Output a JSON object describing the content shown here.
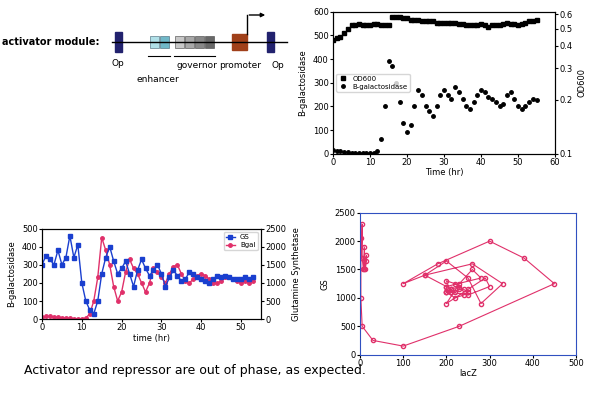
{
  "diagram": {
    "title": "activator module:",
    "elements": [
      "Op",
      "enhancer",
      "governor",
      "promoter",
      "Op"
    ]
  },
  "chart_data": [
    {
      "type": "scatter",
      "xlabel": "Time (hr)",
      "ylabel": "B-galactosidase",
      "y2label": "OD600",
      "x": [
        0,
        1,
        2,
        3,
        4,
        5,
        6,
        7,
        8,
        9,
        10,
        11,
        12,
        13,
        14,
        15,
        16,
        17,
        18,
        19,
        20,
        21,
        22,
        23,
        24,
        25,
        26,
        27,
        28,
        29,
        30,
        31,
        32,
        33,
        34,
        35,
        36,
        37,
        38,
        39,
        40,
        41,
        42,
        43,
        44,
        45,
        46,
        47,
        48,
        49,
        50,
        51,
        52,
        53,
        54,
        55
      ],
      "xlim": [
        0,
        60
      ],
      "xticks": [
        0,
        10,
        20,
        30,
        40,
        50,
        60
      ],
      "ylim": [
        0,
        600
      ],
      "yticks": [
        0,
        100,
        200,
        300,
        400,
        500,
        600
      ],
      "y2lim": [
        0.1,
        0.62
      ],
      "y2ticks": [
        0.1,
        0.2,
        0.3,
        0.4,
        0.5,
        0.6
      ],
      "log": "y2",
      "legend": "center left",
      "series": [
        {
          "name": "OD600",
          "color": "#000000",
          "marker": "square",
          "line_style": "none",
          "axis": "y2",
          "values": [
            0.43,
            0.44,
            0.45,
            0.47,
            0.5,
            0.52,
            0.52,
            0.53,
            0.52,
            0.52,
            0.52,
            0.53,
            0.53,
            0.52,
            0.52,
            0.52,
            0.58,
            0.58,
            0.58,
            0.57,
            0.57,
            0.56,
            0.56,
            0.56,
            0.55,
            0.55,
            0.55,
            0.55,
            0.54,
            0.54,
            0.54,
            0.54,
            0.54,
            0.54,
            0.53,
            0.53,
            0.52,
            0.52,
            0.52,
            0.52,
            0.53,
            0.52,
            0.51,
            0.52,
            0.52,
            0.52,
            0.53,
            0.54,
            0.53,
            0.53,
            0.52,
            0.53,
            0.54,
            0.55,
            0.55,
            0.56
          ]
        },
        {
          "name": "B-galactosidase",
          "color": "#000000",
          "marker": "circle",
          "line_style": "none",
          "values": [
            15,
            12,
            10,
            8,
            6,
            4,
            3,
            2,
            2,
            1,
            1,
            2,
            10,
            60,
            200,
            390,
            370,
            300,
            220,
            130,
            90,
            120,
            200,
            270,
            250,
            200,
            180,
            160,
            200,
            250,
            270,
            250,
            230,
            280,
            260,
            230,
            200,
            190,
            220,
            250,
            270,
            260,
            240,
            230,
            220,
            200,
            210,
            250,
            260,
            230,
            200,
            190,
            200,
            220,
            230,
            225
          ]
        }
      ]
    },
    {
      "type": "line",
      "xlabel": "time (hr)",
      "ylabel": "B-galactosidase",
      "y2label": "Glutamine Synthetase",
      "x": [
        0,
        1,
        2,
        3,
        4,
        5,
        6,
        7,
        8,
        9,
        10,
        11,
        12,
        13,
        14,
        15,
        16,
        17,
        18,
        19,
        20,
        21,
        22,
        23,
        24,
        25,
        26,
        27,
        28,
        29,
        30,
        31,
        32,
        33,
        34,
        35,
        36,
        37,
        38,
        39,
        40,
        41,
        42,
        43,
        44,
        45,
        46,
        47,
        48,
        49,
        50,
        51,
        52,
        53
      ],
      "xlim": [
        0,
        55
      ],
      "xticks": [
        0,
        10,
        20,
        30,
        40,
        50
      ],
      "ylim": [
        0,
        500
      ],
      "yticks": [
        0,
        100,
        200,
        300,
        400,
        500
      ],
      "y2lim": [
        0,
        2500
      ],
      "y2ticks": [
        0,
        500,
        1000,
        1500,
        2000,
        2500
      ],
      "legend": "upper right",
      "series": [
        {
          "name": "GS",
          "color": "#1a3fcf",
          "marker": "square",
          "line_style": "solid",
          "axis": "y2",
          "values": [
            1500,
            1750,
            1650,
            1500,
            1900,
            1500,
            1700,
            2300,
            1700,
            2050,
            1000,
            500,
            250,
            150,
            500,
            1250,
            1700,
            2000,
            1600,
            1250,
            1400,
            1600,
            1250,
            900,
            1350,
            1650,
            1400,
            1200,
            1350,
            1500,
            1250,
            900,
            1150,
            1350,
            1200,
            1050,
            1100,
            1300,
            1250,
            1150,
            1100,
            1050,
            1000,
            1100,
            1200,
            1150,
            1200,
            1150,
            1100,
            1100,
            1100,
            1150,
            1100,
            1150
          ]
        },
        {
          "name": "Bgal",
          "color": "#e0306a",
          "marker": "circle",
          "line_style": "solid",
          "values": [
            10,
            15,
            15,
            12,
            10,
            8,
            5,
            5,
            3,
            2,
            2,
            5,
            30,
            100,
            230,
            450,
            380,
            300,
            180,
            100,
            150,
            260,
            330,
            280,
            250,
            200,
            150,
            200,
            280,
            260,
            230,
            200,
            250,
            290,
            300,
            250,
            210,
            200,
            220,
            240,
            250,
            240,
            220,
            200,
            200,
            210,
            230,
            230,
            220,
            210,
            200,
            210,
            200,
            210
          ]
        }
      ]
    },
    {
      "type": "line",
      "xlabel": "lacZ",
      "ylabel": "GS",
      "color": "#e0306a",
      "marker": "circle",
      "line_style": "solid",
      "x": [
        10,
        15,
        15,
        12,
        10,
        8,
        5,
        5,
        3,
        2,
        2,
        5,
        30,
        100,
        230,
        450,
        380,
        300,
        180,
        100,
        150,
        260,
        330,
        280,
        250,
        200,
        150,
        200,
        280,
        260,
        230,
        200,
        250,
        290,
        300,
        250,
        210,
        200,
        220,
        240,
        250,
        240,
        220,
        200,
        200,
        210,
        230,
        230,
        220,
        210,
        200,
        210,
        200,
        210
      ],
      "values": [
        1500,
        1750,
        1650,
        1500,
        1900,
        1500,
        1700,
        2300,
        1700,
        2050,
        1000,
        500,
        250,
        150,
        500,
        1250,
        1700,
        2000,
        1600,
        1250,
        1400,
        1600,
        1250,
        900,
        1350,
        1650,
        1400,
        1200,
        1350,
        1500,
        1250,
        900,
        1150,
        1350,
        1200,
        1050,
        1100,
        1300,
        1250,
        1150,
        1100,
        1050,
        1000,
        1100,
        1200,
        1150,
        1200,
        1150,
        1100,
        1100,
        1100,
        1150,
        1100,
        1150
      ],
      "xlim": [
        0,
        500
      ],
      "xticks": [
        0,
        100,
        200,
        300,
        400,
        500
      ],
      "ylim": [
        0,
        2500
      ],
      "yticks": [
        0,
        500,
        1000,
        1500,
        2000,
        2500
      ]
    }
  ],
  "caption": "Activator and repressor are out of phase, as expected."
}
